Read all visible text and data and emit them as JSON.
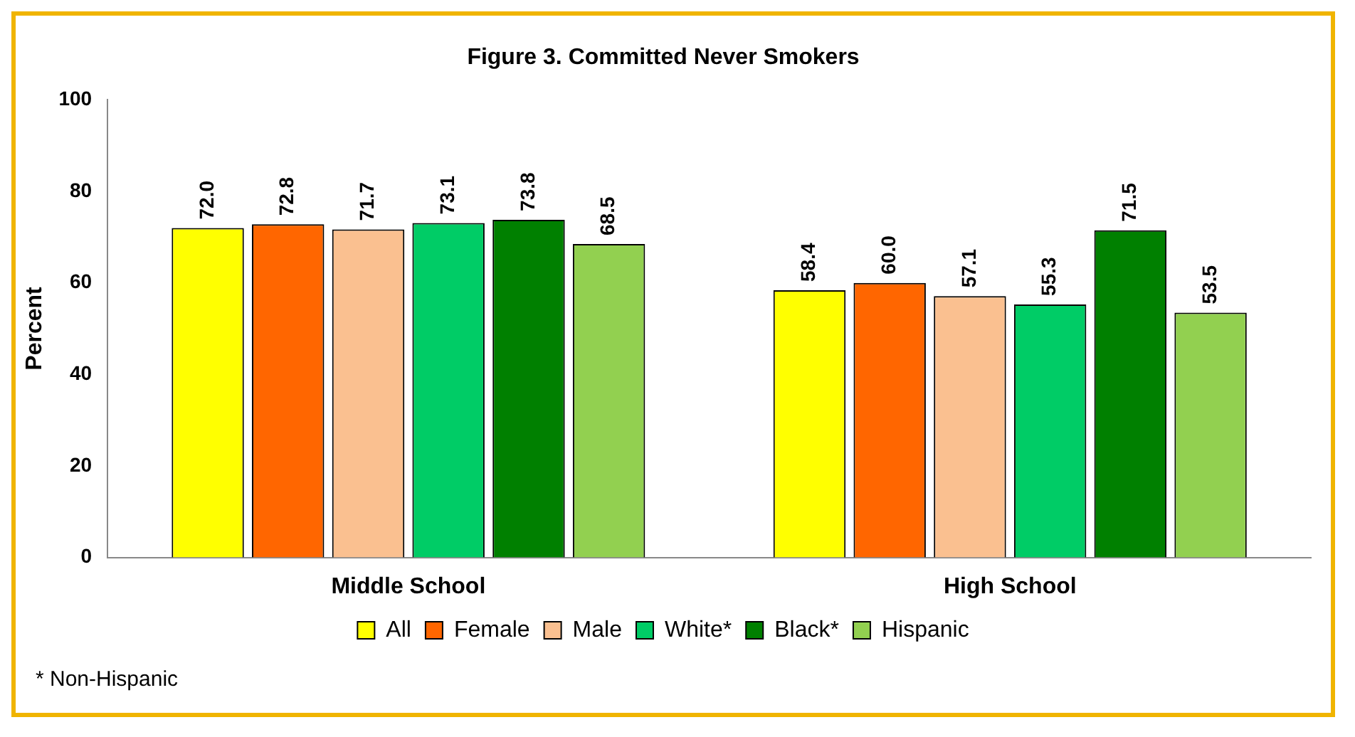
{
  "chart_data": {
    "type": "bar",
    "title": "Figure 3. Committed Never Smokers",
    "ylabel": "Percent",
    "categories": [
      "Middle School",
      "High School"
    ],
    "series": [
      {
        "name": "All",
        "color": "#ffff00",
        "values": [
          72.0,
          58.4
        ],
        "value_labels": [
          "72.0",
          "58.4"
        ]
      },
      {
        "name": "Female",
        "color": "#ff6600",
        "values": [
          72.8,
          60.0
        ],
        "value_labels": [
          "72.8",
          "60.0"
        ]
      },
      {
        "name": "Male",
        "color": "#fac090",
        "values": [
          71.7,
          57.1
        ],
        "value_labels": [
          "71.7",
          "57.1"
        ]
      },
      {
        "name": "White*",
        "color": "#00cc66",
        "values": [
          73.1,
          55.3
        ],
        "value_labels": [
          "73.1",
          "55.3"
        ]
      },
      {
        "name": "Black*",
        "color": "#008000",
        "values": [
          73.8,
          71.5
        ],
        "value_labels": [
          "73.8",
          "71.5"
        ]
      },
      {
        "name": "Hispanic",
        "color": "#92d050",
        "values": [
          68.5,
          53.5
        ],
        "value_labels": [
          "68.5",
          "53.5"
        ]
      }
    ],
    "ylim": [
      0,
      100
    ],
    "yticks": [
      0,
      20,
      40,
      60,
      80,
      100
    ],
    "grid": false,
    "legend": "bottom",
    "annotations": [
      "* Non-Hispanic"
    ]
  }
}
